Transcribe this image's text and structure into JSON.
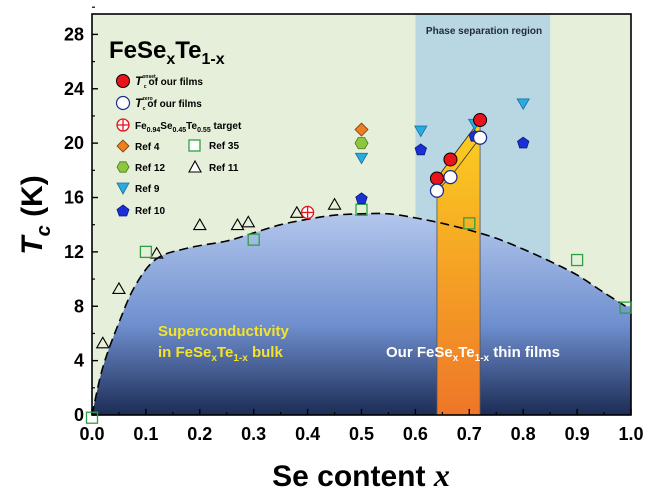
{
  "chart_data": {
    "type": "scatter",
    "title_main": "FeSe",
    "title_sub1": "x",
    "title_mid": "Te",
    "title_sub2": "1-x",
    "xlabel_main": "Se content ",
    "xlabel_var": "x",
    "ylabel_var": "T",
    "ylabel_sub": "c",
    "ylabel_unit": " (K)",
    "xlim": [
      0,
      1.0
    ],
    "ylim": [
      0,
      29.5
    ],
    "xticks": [
      "0.0",
      "0.1",
      "0.2",
      "0.3",
      "0.4",
      "0.5",
      "0.6",
      "0.7",
      "0.8",
      "0.9",
      "1.0"
    ],
    "yticks": [
      "0",
      "4",
      "8",
      "12",
      "16",
      "20",
      "24",
      "28"
    ],
    "phase_region": {
      "x": [
        0.6,
        0.85
      ],
      "label": "Phase separation region",
      "color": "#b9d7e3"
    },
    "bulk_label_line1": "Superconductivity",
    "bulk_label_line2_a": "in FeSe",
    "bulk_label_line2_sub1": "x",
    "bulk_label_line2_b": "Te",
    "bulk_label_line2_sub2": "1-x",
    "bulk_label_line2_c": " bulk",
    "films_label_a": "Our FeSe",
    "films_label_sub1": "x",
    "films_label_b": "Te",
    "films_label_sub2": "1-x",
    "films_label_c": " thin films",
    "bulk_curve": {
      "x": [
        0.0,
        0.02,
        0.05,
        0.08,
        0.12,
        0.18,
        0.25,
        0.3,
        0.35,
        0.4,
        0.45,
        0.5,
        0.55,
        0.6,
        0.65,
        0.7,
        0.75,
        0.8,
        0.85,
        0.9,
        0.95,
        0.99
      ],
      "y": [
        0.0,
        3.5,
        6.8,
        9.5,
        11.5,
        12.3,
        12.8,
        13.4,
        14.0,
        14.4,
        14.7,
        14.8,
        14.8,
        14.5,
        14.1,
        13.6,
        13.0,
        12.2,
        11.3,
        10.3,
        9.0,
        8.0
      ]
    },
    "legend": {
      "onset": {
        "sym": "T",
        "sup": "onset",
        "sub": "c",
        "text": "of our films"
      },
      "zero": {
        "sym": "T",
        "sup": "zero",
        "sub": "c",
        "text": "of our films"
      },
      "target": {
        "a": "Fe",
        "s1": "0.94",
        "b": "Se",
        "s2": "0.45",
        "c": "Te",
        "s3": "0.55",
        "d": " target"
      },
      "ref4": "Ref 4",
      "ref12": "Ref 12",
      "ref9": "Ref 9",
      "ref10": "Ref 10",
      "ref35": "Ref 35",
      "ref11": "Ref 11"
    },
    "series": [
      {
        "id": "onset",
        "marker": "circle-filled",
        "color": "#e8141c",
        "x": [
          0.64,
          0.665,
          0.72
        ],
        "y": [
          17.4,
          18.8,
          21.7
        ]
      },
      {
        "id": "zero",
        "marker": "circle-open",
        "color": "#1e2d8c",
        "x": [
          0.64,
          0.665,
          0.72
        ],
        "y": [
          16.5,
          17.5,
          20.4
        ]
      },
      {
        "id": "target",
        "marker": "circle-cross",
        "color": "#e8141c",
        "x": [
          0.4
        ],
        "y": [
          14.9
        ]
      },
      {
        "id": "ref4",
        "marker": "diamond",
        "color": "#ef7d22",
        "x": [
          0.5
        ],
        "y": [
          21.0
        ]
      },
      {
        "id": "ref12",
        "marker": "hexagon",
        "color": "#8dc63f",
        "x": [
          0.5
        ],
        "y": [
          20.0
        ]
      },
      {
        "id": "ref9",
        "marker": "triangle-down",
        "color": "#29abe2",
        "x": [
          0.5,
          0.61,
          0.71,
          0.8
        ],
        "y": [
          19.0,
          21.0,
          21.5,
          23.0
        ]
      },
      {
        "id": "ref10",
        "marker": "pentagon",
        "color": "#1a2fd6",
        "x": [
          0.5,
          0.61,
          0.71,
          0.8
        ],
        "y": [
          15.9,
          19.5,
          20.5,
          20.0
        ]
      },
      {
        "id": "ref35",
        "marker": "square-open",
        "color": "#2ea043",
        "x": [
          0.0,
          0.1,
          0.3,
          0.5,
          0.7,
          0.9,
          0.99
        ],
        "y": [
          -0.2,
          12.0,
          12.9,
          15.1,
          14.1,
          11.4,
          7.9
        ]
      },
      {
        "id": "ref11",
        "marker": "triangle-open",
        "color": "#000000",
        "x": [
          0.02,
          0.05,
          0.12,
          0.2,
          0.27,
          0.29,
          0.38,
          0.45
        ],
        "y": [
          5.2,
          9.2,
          11.8,
          13.9,
          13.9,
          14.1,
          14.8,
          15.4
        ]
      }
    ]
  }
}
